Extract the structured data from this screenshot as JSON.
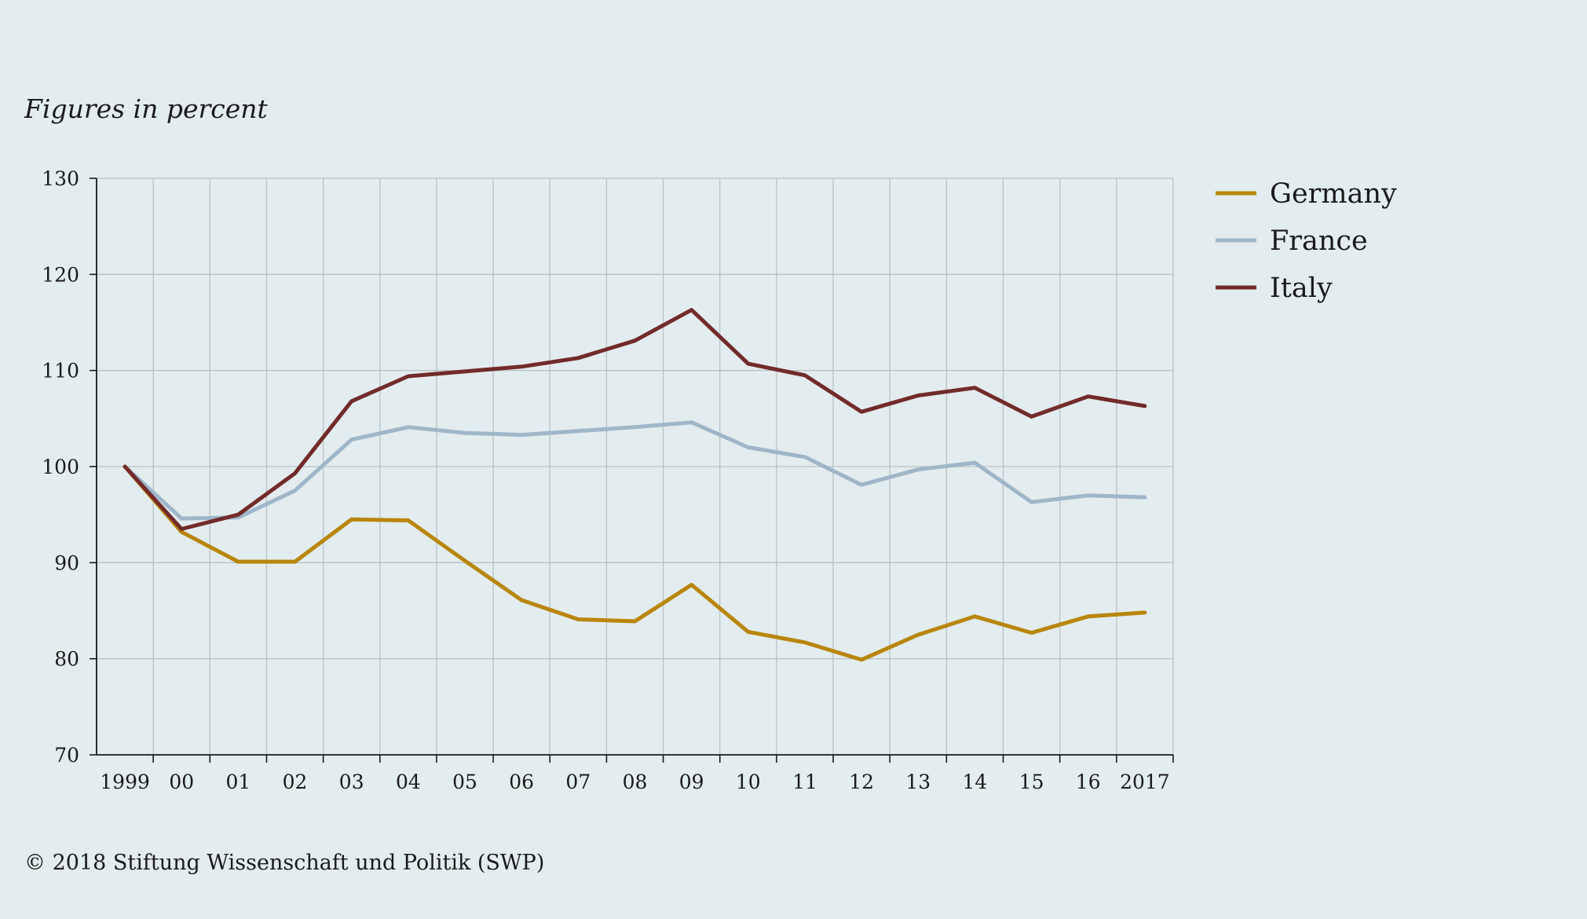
{
  "chart_data": {
    "type": "line",
    "subtitle": "Figures in percent",
    "credit": "© 2018 Stiftung Wissenschaft und Politik (SWP)",
    "categories": [
      "1999",
      "00",
      "01",
      "02",
      "03",
      "04",
      "05",
      "06",
      "07",
      "08",
      "09",
      "10",
      "11",
      "12",
      "13",
      "14",
      "15",
      "16",
      "2017"
    ],
    "ylim": [
      70,
      130
    ],
    "yticks": [
      70,
      80,
      90,
      100,
      110,
      120,
      130
    ],
    "grid": true,
    "legend_position": "right",
    "series": [
      {
        "name": "Germany",
        "color": "#b8860b",
        "values": [
          100,
          93.2,
          90.1,
          90.1,
          94.5,
          94.4,
          90.2,
          86.1,
          84.1,
          83.9,
          87.7,
          82.8,
          81.7,
          79.9,
          82.5,
          84.4,
          82.7,
          84.4,
          84.8
        ]
      },
      {
        "name": "France",
        "color": "#9eb6c8",
        "values": [
          100,
          94.6,
          94.7,
          97.5,
          102.8,
          104.1,
          103.5,
          103.3,
          103.7,
          104.1,
          104.6,
          102.0,
          101.0,
          98.1,
          99.7,
          100.4,
          96.3,
          97.0,
          96.8
        ]
      },
      {
        "name": "Italy",
        "color": "#722b2b",
        "values": [
          100,
          93.5,
          95.0,
          99.3,
          106.8,
          109.4,
          109.9,
          110.4,
          111.3,
          113.1,
          116.3,
          110.7,
          109.5,
          105.7,
          107.4,
          108.2,
          105.2,
          107.3,
          106.3
        ]
      }
    ]
  }
}
